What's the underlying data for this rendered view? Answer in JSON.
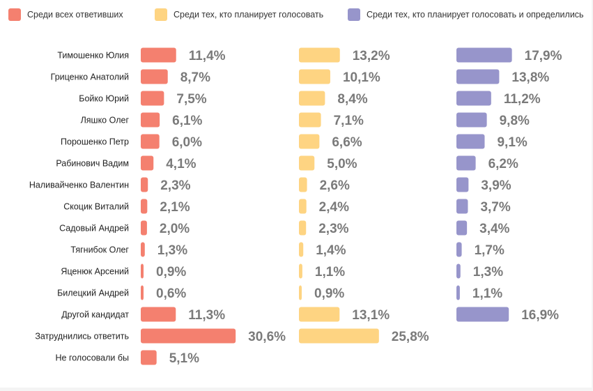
{
  "chart_data": {
    "type": "bar",
    "orientation": "horizontal",
    "title": "",
    "legend_position": "top",
    "categories": [
      "Тимошенко Юлия",
      "Гриценко Анатолий",
      "Бойко Юрий",
      "Ляшко Олег",
      "Порошенко Петр",
      "Рабинович Вадим",
      "Наливайченко Валентин",
      "Скоцик Виталий",
      "Садовый Андрей",
      "Тягнибок Олег",
      "Яценюк Арсений",
      "Билецкий Андрей",
      "Другой кандидат",
      "Затруднились ответить",
      "Не голосовали бы"
    ],
    "series": [
      {
        "name": "Среди всех ответивших",
        "color": "#f4806f",
        "values": [
          11.4,
          8.7,
          7.5,
          6.1,
          6.0,
          4.1,
          2.3,
          2.1,
          2.0,
          1.3,
          0.9,
          0.6,
          11.3,
          30.6,
          5.1
        ],
        "labels": [
          "11,4%",
          "8,7%",
          "7,5%",
          "6,1%",
          "6,0%",
          "4,1%",
          "2,3%",
          "2,1%",
          "2,0%",
          "1,3%",
          "0,9%",
          "0,6%",
          "11,3%",
          "30,6%",
          "5,1%"
        ]
      },
      {
        "name": "Среди тех, кто планирует голосовать",
        "color": "#fed482",
        "values": [
          13.2,
          10.1,
          8.4,
          7.1,
          6.6,
          5.0,
          2.6,
          2.4,
          2.3,
          1.4,
          1.1,
          0.9,
          13.1,
          25.8,
          null
        ],
        "labels": [
          "13,2%",
          "10,1%",
          "8,4%",
          "7,1%",
          "6,6%",
          "5,0%",
          "2,6%",
          "2,4%",
          "2,3%",
          "1,4%",
          "1,1%",
          "0,9%",
          "13,1%",
          "25,8%",
          ""
        ]
      },
      {
        "name": "Среди тех, кто планирует голосовать и определились",
        "color": "#9795cb",
        "values": [
          17.9,
          13.8,
          11.2,
          9.8,
          9.1,
          6.2,
          3.9,
          3.7,
          3.4,
          1.7,
          1.3,
          1.1,
          16.9,
          null,
          null
        ],
        "labels": [
          "17,9%",
          "13,8%",
          "11,2%",
          "9,8%",
          "9,1%",
          "6,2%",
          "3,9%",
          "3,7%",
          "3,4%",
          "1,7%",
          "1,3%",
          "1,1%",
          "16,9%",
          "",
          ""
        ]
      }
    ]
  }
}
